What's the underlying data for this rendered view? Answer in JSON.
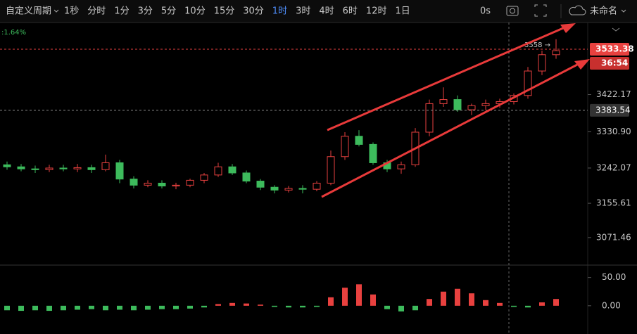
{
  "toolbar": {
    "items": [
      "自定义周期",
      "1秒",
      "分时",
      "1分",
      "3分",
      "5分",
      "10分",
      "15分",
      "30分",
      "1时",
      "3时",
      "4时",
      "6时",
      "12时",
      "1日"
    ],
    "active": "1时",
    "timer": "0s",
    "layout_name": "未命名"
  },
  "chart_data": {
    "type": "candlestick",
    "change_label": ":1.64%",
    "ylim": [
      3004,
      3599
    ],
    "yticks": [
      3422.17,
      {
        "value": 3330.9,
        "label": "3330.90"
      },
      3242.07,
      3155.61,
      3071.46
    ],
    "current_price": 3533.38,
    "countdown": "36:54",
    "crosshair_price": 3383.54,
    "high_marker": "3558 →",
    "open": [
      3250,
      3245,
      3240,
      3238,
      3242,
      3240,
      3243,
      3238,
      3255,
      3215,
      3200,
      3205,
      3198,
      3200,
      3212,
      3225,
      3245,
      3230,
      3210,
      3195,
      3188,
      3192,
      3190,
      3205,
      3270,
      3320,
      3300,
      3255,
      3240,
      3250,
      3330,
      3400,
      3410,
      3385,
      3395,
      3400,
      3405,
      3420,
      3480,
      3520
    ],
    "high": [
      3258,
      3252,
      3248,
      3250,
      3250,
      3252,
      3250,
      3275,
      3262,
      3222,
      3212,
      3212,
      3206,
      3216,
      3230,
      3255,
      3252,
      3236,
      3215,
      3200,
      3198,
      3200,
      3210,
      3285,
      3330,
      3335,
      3305,
      3262,
      3258,
      3340,
      3410,
      3440,
      3420,
      3400,
      3410,
      3412,
      3425,
      3490,
      3530,
      3558
    ],
    "low": [
      3238,
      3234,
      3230,
      3232,
      3234,
      3232,
      3230,
      3234,
      3205,
      3192,
      3195,
      3192,
      3190,
      3195,
      3205,
      3220,
      3225,
      3205,
      3188,
      3180,
      3182,
      3180,
      3185,
      3200,
      3262,
      3295,
      3250,
      3232,
      3228,
      3245,
      3320,
      3392,
      3380,
      3372,
      3385,
      3390,
      3398,
      3412,
      3470,
      3510
    ],
    "close": [
      3245,
      3240,
      3238,
      3242,
      3240,
      3243,
      3238,
      3255,
      3215,
      3200,
      3205,
      3198,
      3200,
      3212,
      3225,
      3245,
      3230,
      3210,
      3195,
      3188,
      3192,
      3190,
      3205,
      3270,
      3320,
      3300,
      3255,
      3240,
      3250,
      3330,
      3400,
      3410,
      3385,
      3395,
      3400,
      3405,
      3420,
      3480,
      3520,
      3530
    ],
    "macd_ylim": [
      -50,
      72
    ],
    "macd_yticks": [
      {
        "value": 50,
        "label": "50.00"
      },
      {
        "value": 0,
        "label": "0.00"
      }
    ],
    "macd": [
      -8,
      -9,
      -8,
      -9,
      -8,
      -7,
      -6,
      -8,
      -7,
      -8,
      -7,
      -6,
      -6,
      -5,
      -3,
      3,
      5,
      4,
      2,
      -2,
      -3,
      -3,
      -2,
      15,
      32,
      38,
      20,
      -6,
      -10,
      -8,
      12,
      25,
      30,
      22,
      10,
      5,
      -2,
      -3,
      6,
      12
    ]
  }
}
